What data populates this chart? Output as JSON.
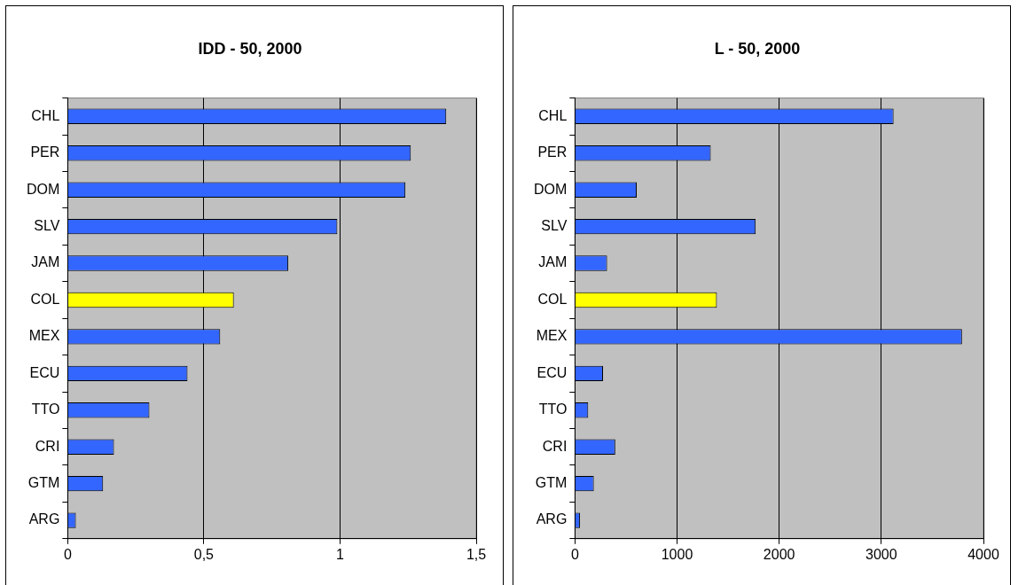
{
  "chart_data": [
    {
      "type": "bar",
      "orientation": "horizontal",
      "title": "IDD - 50, 2000",
      "categories": [
        "CHL",
        "PER",
        "DOM",
        "SLV",
        "JAM",
        "COL",
        "MEX",
        "ECU",
        "TTO",
        "CRI",
        "GTM",
        "ARG"
      ],
      "values": [
        1.39,
        1.26,
        1.24,
        0.99,
        0.81,
        0.61,
        0.56,
        0.44,
        0.3,
        0.17,
        0.13,
        0.03
      ],
      "colors": [
        "#3366ff",
        "#3366ff",
        "#3366ff",
        "#3366ff",
        "#3366ff",
        "#ffff00",
        "#3366ff",
        "#3366ff",
        "#3366ff",
        "#3366ff",
        "#3366ff",
        "#3366ff"
      ],
      "xlim": [
        0,
        1.5
      ],
      "xticks": [
        0,
        {
          "value": 0.5,
          "label": "0,5"
        },
        1,
        {
          "value": 1.5,
          "label": "1,5"
        }
      ],
      "grid": "x"
    },
    {
      "type": "bar",
      "orientation": "horizontal",
      "title": "L - 50, 2000",
      "categories": [
        "CHL",
        "PER",
        "DOM",
        "SLV",
        "JAM",
        "COL",
        "MEX",
        "ECU",
        "TTO",
        "CRI",
        "GTM",
        "ARG"
      ],
      "values": [
        3120,
        1330,
        605,
        1770,
        315,
        1390,
        3790,
        275,
        130,
        395,
        185,
        50
      ],
      "colors": [
        "#3366ff",
        "#3366ff",
        "#3366ff",
        "#3366ff",
        "#3366ff",
        "#ffff00",
        "#3366ff",
        "#3366ff",
        "#3366ff",
        "#3366ff",
        "#3366ff",
        "#3366ff"
      ],
      "xlim": [
        0,
        4000
      ],
      "xticks": [
        0,
        1000,
        2000,
        3000,
        4000
      ],
      "grid": "x"
    }
  ]
}
